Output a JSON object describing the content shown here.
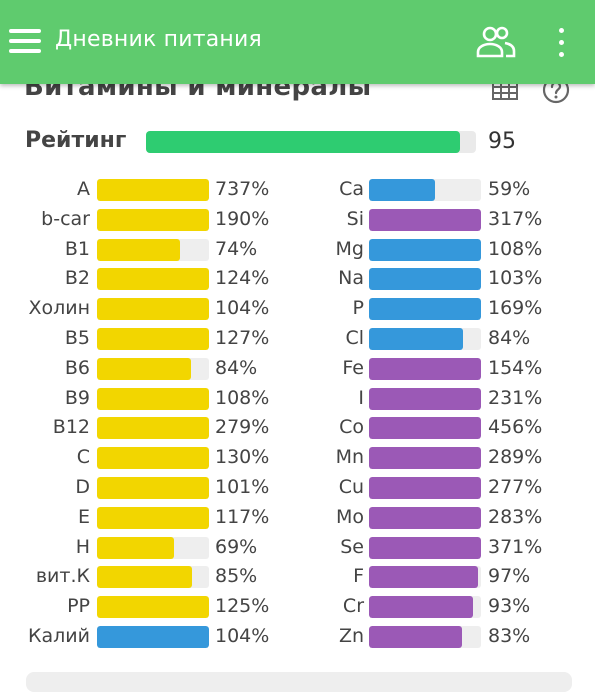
{
  "appbar": {
    "title": "Дневник питания"
  },
  "section": {
    "title": "Витамины и минералы"
  },
  "rating": {
    "label": "Рейтинг",
    "value": "95",
    "fraction": 0.95
  },
  "colors": {
    "yellow": "#f2d600",
    "blue": "#3598db",
    "purple": "#9b59b6",
    "green": "#2ecc71",
    "appbar": "#5fcb6e"
  },
  "vitamins": [
    {
      "label": "A",
      "pct": "737%",
      "fill": 1.0,
      "color": "yellow"
    },
    {
      "label": "b-car",
      "pct": "190%",
      "fill": 1.0,
      "color": "yellow"
    },
    {
      "label": "B1",
      "pct": "74%",
      "fill": 0.74,
      "color": "yellow"
    },
    {
      "label": "B2",
      "pct": "124%",
      "fill": 1.0,
      "color": "yellow"
    },
    {
      "label": "Холин",
      "pct": "104%",
      "fill": 1.0,
      "color": "yellow"
    },
    {
      "label": "B5",
      "pct": "127%",
      "fill": 1.0,
      "color": "yellow"
    },
    {
      "label": "B6",
      "pct": "84%",
      "fill": 0.84,
      "color": "yellow"
    },
    {
      "label": "B9",
      "pct": "108%",
      "fill": 1.0,
      "color": "yellow"
    },
    {
      "label": "B12",
      "pct": "279%",
      "fill": 1.0,
      "color": "yellow"
    },
    {
      "label": "C",
      "pct": "130%",
      "fill": 1.0,
      "color": "yellow"
    },
    {
      "label": "D",
      "pct": "101%",
      "fill": 1.0,
      "color": "yellow"
    },
    {
      "label": "E",
      "pct": "117%",
      "fill": 1.0,
      "color": "yellow"
    },
    {
      "label": "H",
      "pct": "69%",
      "fill": 0.69,
      "color": "yellow"
    },
    {
      "label": "вит.К",
      "pct": "85%",
      "fill": 0.85,
      "color": "yellow"
    },
    {
      "label": "PP",
      "pct": "125%",
      "fill": 1.0,
      "color": "yellow"
    },
    {
      "label": "Калий",
      "pct": "104%",
      "fill": 1.0,
      "color": "blue"
    }
  ],
  "minerals": [
    {
      "label": "Ca",
      "pct": "59%",
      "fill": 0.59,
      "color": "blue"
    },
    {
      "label": "Si",
      "pct": "317%",
      "fill": 1.0,
      "color": "purple"
    },
    {
      "label": "Mg",
      "pct": "108%",
      "fill": 1.0,
      "color": "blue"
    },
    {
      "label": "Na",
      "pct": "103%",
      "fill": 1.0,
      "color": "blue"
    },
    {
      "label": "P",
      "pct": "169%",
      "fill": 1.0,
      "color": "blue"
    },
    {
      "label": "Cl",
      "pct": "84%",
      "fill": 0.84,
      "color": "blue"
    },
    {
      "label": "Fe",
      "pct": "154%",
      "fill": 1.0,
      "color": "purple"
    },
    {
      "label": "I",
      "pct": "231%",
      "fill": 1.0,
      "color": "purple"
    },
    {
      "label": "Co",
      "pct": "456%",
      "fill": 1.0,
      "color": "purple"
    },
    {
      "label": "Mn",
      "pct": "289%",
      "fill": 1.0,
      "color": "purple"
    },
    {
      "label": "Cu",
      "pct": "277%",
      "fill": 1.0,
      "color": "purple"
    },
    {
      "label": "Mo",
      "pct": "283%",
      "fill": 1.0,
      "color": "purple"
    },
    {
      "label": "Se",
      "pct": "371%",
      "fill": 1.0,
      "color": "purple"
    },
    {
      "label": "F",
      "pct": "97%",
      "fill": 0.97,
      "color": "purple"
    },
    {
      "label": "Cr",
      "pct": "93%",
      "fill": 0.93,
      "color": "purple"
    },
    {
      "label": "Zn",
      "pct": "83%",
      "fill": 0.83,
      "color": "purple"
    }
  ],
  "icons": {
    "menu": "menu-icon",
    "people": "people-icon",
    "more": "more-vert-icon",
    "grid": "grid-icon",
    "help": "help-icon"
  }
}
